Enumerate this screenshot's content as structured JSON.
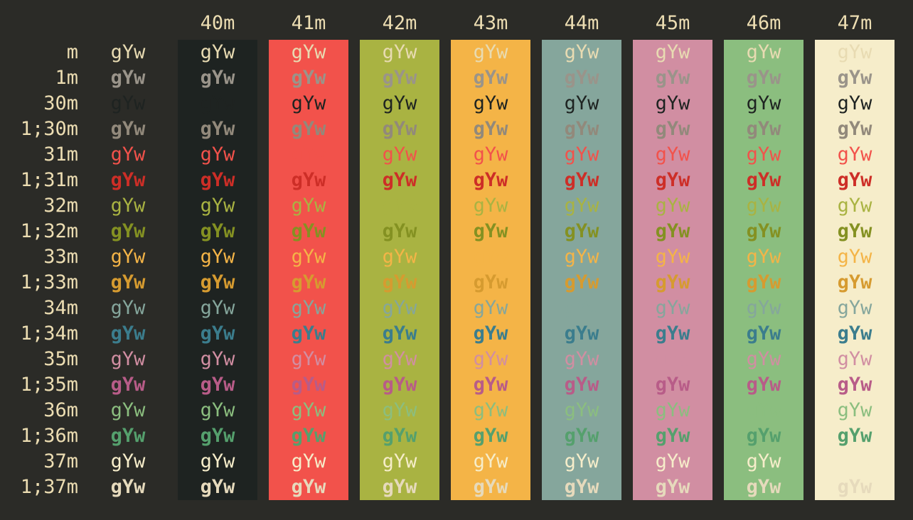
{
  "app": {
    "type": "terminal-ansi-color-test",
    "cell_text": "gYw"
  },
  "palette": {
    "page_bg": "#2b2b27",
    "label_fg": "#ecddb2"
  },
  "columns": [
    {
      "label": "40m",
      "bg": "#1e2321"
    },
    {
      "label": "41m",
      "bg": "#f2524b"
    },
    {
      "label": "42m",
      "bg": "#a9b342"
    },
    {
      "label": "43m",
      "bg": "#f4b447"
    },
    {
      "label": "44m",
      "bg": "#85a69c"
    },
    {
      "label": "45m",
      "bg": "#d18ea2"
    },
    {
      "label": "46m",
      "bg": "#8bbe7f"
    },
    {
      "label": "47m",
      "bg": "#f6edca"
    }
  ],
  "rows": [
    {
      "label": "m",
      "bold": false,
      "fg": "#e8dbb2"
    },
    {
      "label": "1m",
      "bold": true,
      "fg": "#9a948a"
    },
    {
      "label": "30m",
      "bold": false,
      "fg": "#1e2321"
    },
    {
      "label": "1;30m",
      "bold": true,
      "fg": "#92897b"
    },
    {
      "label": "31m",
      "bold": false,
      "fg": "#f2524b"
    },
    {
      "label": "1;31m",
      "bold": true,
      "fg": "#cd2e27"
    },
    {
      "label": "32m",
      "bold": false,
      "fg": "#a9b342"
    },
    {
      "label": "1;32m",
      "bold": true,
      "fg": "#849122"
    },
    {
      "label": "33m",
      "bold": false,
      "fg": "#f4b447"
    },
    {
      "label": "1;33m",
      "bold": true,
      "fg": "#d69b30"
    },
    {
      "label": "34m",
      "bold": false,
      "fg": "#85a69c"
    },
    {
      "label": "1;34m",
      "bold": true,
      "fg": "#3b7d8d"
    },
    {
      "label": "35m",
      "bold": false,
      "fg": "#d18ea2"
    },
    {
      "label": "1;35m",
      "bold": true,
      "fg": "#b85c88"
    },
    {
      "label": "36m",
      "bold": false,
      "fg": "#8bbe7f"
    },
    {
      "label": "1;36m",
      "bold": true,
      "fg": "#55a06d"
    },
    {
      "label": "37m",
      "bold": false,
      "fg": "#f6edca"
    },
    {
      "label": "1;37m",
      "bold": true,
      "fg": "#e6dabc"
    }
  ]
}
